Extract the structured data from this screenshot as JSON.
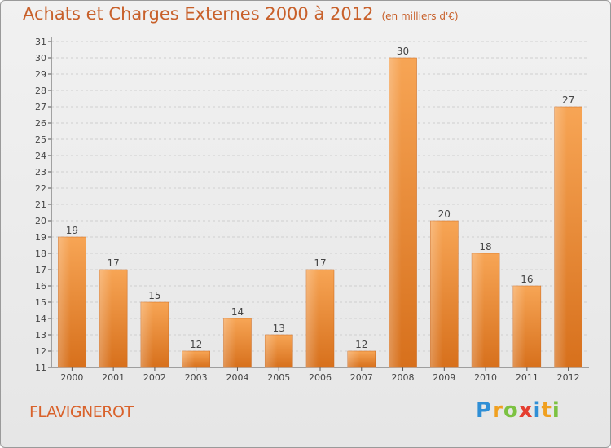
{
  "header": {
    "title": "Achats et Charges Externes 2000 à 2012",
    "subtitle": "(en milliers d'€)"
  },
  "location": "FLAVIGNEROT",
  "logo": {
    "letters": [
      "P",
      "r",
      "o",
      "x",
      "i",
      "t",
      "i"
    ],
    "colors": [
      "#2f8fd6",
      "#f0a020",
      "#7cc242",
      "#e53e30",
      "#2f8fd6",
      "#f0a020",
      "#7cc242"
    ]
  },
  "chart_data": {
    "type": "bar",
    "title": "Achats et Charges Externes 2000 à 2012",
    "subtitle": "(en milliers d'€)",
    "categories": [
      "2000",
      "2001",
      "2002",
      "2003",
      "2004",
      "2005",
      "2006",
      "2007",
      "2008",
      "2009",
      "2010",
      "2011",
      "2012"
    ],
    "values": [
      19,
      17,
      15,
      12,
      14,
      13,
      17,
      12,
      30,
      20,
      18,
      16,
      27
    ],
    "ylim": [
      11,
      31
    ],
    "yticks": [
      11,
      12,
      13,
      14,
      15,
      16,
      17,
      18,
      19,
      20,
      21,
      22,
      23,
      24,
      25,
      26,
      27,
      28,
      29,
      30,
      31
    ],
    "grid": true,
    "bar_color": "#f0882c",
    "xlabel": "",
    "ylabel": ""
  }
}
